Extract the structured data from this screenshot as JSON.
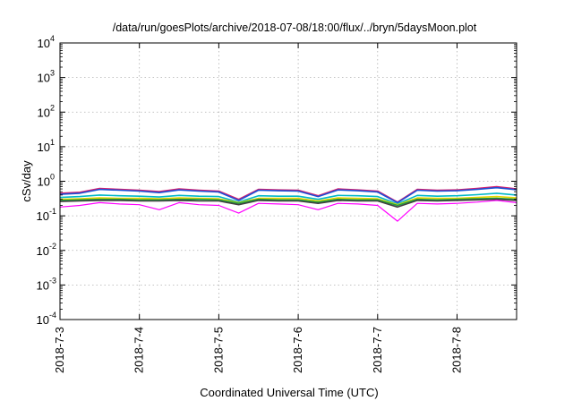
{
  "chart_data": {
    "type": "line",
    "title": "/data/run/goesPlots/archive/2018-07-08/18:00/flux/../bryn/5daysMoon.plot",
    "xlabel": "Coordinated Universal Time (UTC)",
    "ylabel": "cSv/day",
    "y_scale": "log",
    "ylim": [
      0.0001,
      10000
    ],
    "xlim": [
      "2018-07-03",
      "2018-07-08 18:00"
    ],
    "grid": true,
    "y_ticks": [
      {
        "base": "10",
        "exp": "-4",
        "value": 0.0001
      },
      {
        "base": "10",
        "exp": "-3",
        "value": 0.001
      },
      {
        "base": "10",
        "exp": "-2",
        "value": 0.01
      },
      {
        "base": "10",
        "exp": "-1",
        "value": 0.1
      },
      {
        "base": "10",
        "exp": "0",
        "value": 1
      },
      {
        "base": "10",
        "exp": "1",
        "value": 10
      },
      {
        "base": "10",
        "exp": "2",
        "value": 100
      },
      {
        "base": "10",
        "exp": "3",
        "value": 1000
      },
      {
        "base": "10",
        "exp": "4",
        "value": 10000
      }
    ],
    "x_ticks": [
      "2018-7-3",
      "2018-7-4",
      "2018-7-5",
      "2018-7-6",
      "2018-7-7",
      "2018-7-8"
    ],
    "x": [
      "2018-07-03 00:00",
      "2018-07-03 06:00",
      "2018-07-03 12:00",
      "2018-07-03 18:00",
      "2018-07-04 00:00",
      "2018-07-04 06:00",
      "2018-07-04 12:00",
      "2018-07-04 18:00",
      "2018-07-05 00:00",
      "2018-07-05 06:00",
      "2018-07-05 12:00",
      "2018-07-05 18:00",
      "2018-07-06 00:00",
      "2018-07-06 06:00",
      "2018-07-06 12:00",
      "2018-07-06 18:00",
      "2018-07-07 00:00",
      "2018-07-07 06:00",
      "2018-07-07 12:00",
      "2018-07-07 18:00",
      "2018-07-08 00:00",
      "2018-07-08 06:00",
      "2018-07-08 12:00",
      "2018-07-08 18:00"
    ],
    "series": [
      {
        "color": "#d62070",
        "values": [
          0.45,
          0.48,
          0.62,
          0.58,
          0.55,
          0.5,
          0.6,
          0.55,
          0.52,
          0.3,
          0.58,
          0.56,
          0.55,
          0.38,
          0.6,
          0.56,
          0.52,
          0.25,
          0.58,
          0.55,
          0.56,
          0.62,
          0.7,
          0.6
        ]
      },
      {
        "color": "#1a4fd6",
        "values": [
          0.42,
          0.45,
          0.58,
          0.55,
          0.52,
          0.47,
          0.56,
          0.52,
          0.49,
          0.28,
          0.55,
          0.53,
          0.52,
          0.36,
          0.56,
          0.53,
          0.49,
          0.24,
          0.55,
          0.52,
          0.53,
          0.58,
          0.65,
          0.57
        ]
      },
      {
        "color": "#00b8c8",
        "values": [
          0.34,
          0.36,
          0.4,
          0.38,
          0.37,
          0.35,
          0.39,
          0.37,
          0.36,
          0.25,
          0.38,
          0.37,
          0.37,
          0.3,
          0.39,
          0.38,
          0.36,
          0.22,
          0.39,
          0.37,
          0.38,
          0.41,
          0.45,
          0.4
        ]
      },
      {
        "color": "#e8d800",
        "values": [
          0.3,
          0.31,
          0.33,
          0.32,
          0.32,
          0.31,
          0.33,
          0.32,
          0.31,
          0.24,
          0.32,
          0.32,
          0.32,
          0.27,
          0.33,
          0.32,
          0.31,
          0.21,
          0.33,
          0.32,
          0.32,
          0.34,
          0.36,
          0.33
        ]
      },
      {
        "color": "#20a040",
        "values": [
          0.28,
          0.29,
          0.3,
          0.3,
          0.29,
          0.29,
          0.3,
          0.3,
          0.29,
          0.23,
          0.3,
          0.29,
          0.29,
          0.25,
          0.3,
          0.29,
          0.29,
          0.2,
          0.3,
          0.29,
          0.3,
          0.31,
          0.32,
          0.3
        ]
      },
      {
        "color": "#404040",
        "values": [
          0.26,
          0.27,
          0.28,
          0.28,
          0.27,
          0.27,
          0.28,
          0.27,
          0.27,
          0.21,
          0.28,
          0.27,
          0.27,
          0.23,
          0.28,
          0.27,
          0.27,
          0.18,
          0.28,
          0.27,
          0.28,
          0.29,
          0.3,
          0.28
        ]
      },
      {
        "color": "#ff00ff",
        "values": [
          0.18,
          0.2,
          0.24,
          0.22,
          0.21,
          0.15,
          0.24,
          0.21,
          0.2,
          0.12,
          0.23,
          0.22,
          0.21,
          0.15,
          0.23,
          0.22,
          0.2,
          0.07,
          0.23,
          0.22,
          0.23,
          0.25,
          0.28,
          0.24
        ]
      }
    ]
  }
}
